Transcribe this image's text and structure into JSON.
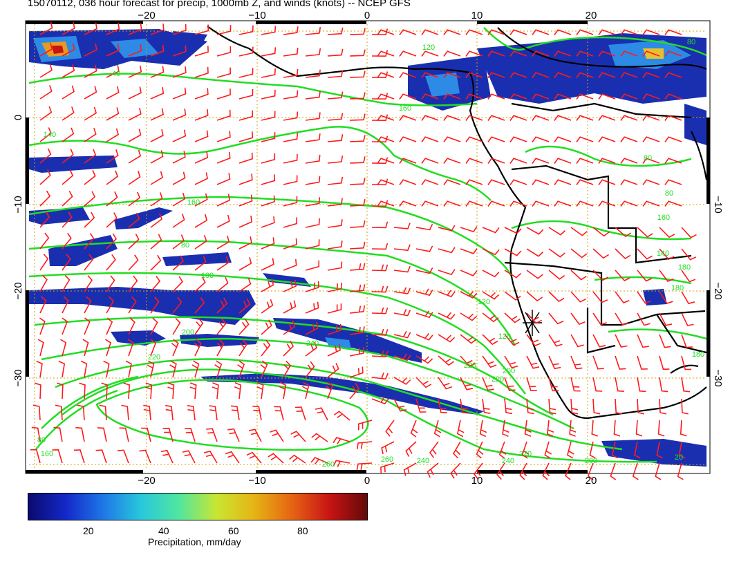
{
  "title": "15070112, 036 hour forecast for precip, 1000mb Z, and winds (knots) -- NCEP GFS",
  "axes": {
    "lon_top_labels": [
      "−20",
      "−10",
      "0",
      "10",
      "20"
    ],
    "lon_bottom_labels": [
      "−20",
      "−10",
      "0",
      "10",
      "20"
    ],
    "lat_labels": [
      "0",
      "−10",
      "−20",
      "−30"
    ],
    "lon_values": [
      -20,
      -10,
      0,
      10,
      20
    ],
    "lat_values": [
      0,
      -10,
      -20,
      -30
    ],
    "lon_range": [
      -30,
      31
    ],
    "lat_range": [
      -41,
      11
    ]
  },
  "contour_labels": [
    "40",
    "120",
    "80",
    "140",
    "80",
    "160",
    "80",
    "100",
    "180",
    "200",
    "220",
    "240",
    "260",
    "80",
    "160",
    "120",
    "200",
    "220",
    "180",
    "160",
    "120",
    "240",
    "220",
    "260",
    "240",
    "220",
    "200",
    "80",
    "140",
    "160",
    "180",
    "20"
  ],
  "colorbar": {
    "label": "Precipitation, mm/day",
    "tick_labels": [
      "20",
      "40",
      "60",
      "80"
    ],
    "tick_values": [
      20,
      40,
      60,
      80
    ],
    "range": [
      0,
      100
    ],
    "colors": [
      "#0a0a6e",
      "#1428c8",
      "#1e78e6",
      "#28c8dc",
      "#50e6a0",
      "#c8e632",
      "#e6b414",
      "#e66414",
      "#c81414",
      "#640a0a"
    ]
  },
  "colors": {
    "contour": "#22dd22",
    "wind_barb": "#ff1a1a",
    "coastline": "#000000",
    "grid": "#d4a000"
  }
}
